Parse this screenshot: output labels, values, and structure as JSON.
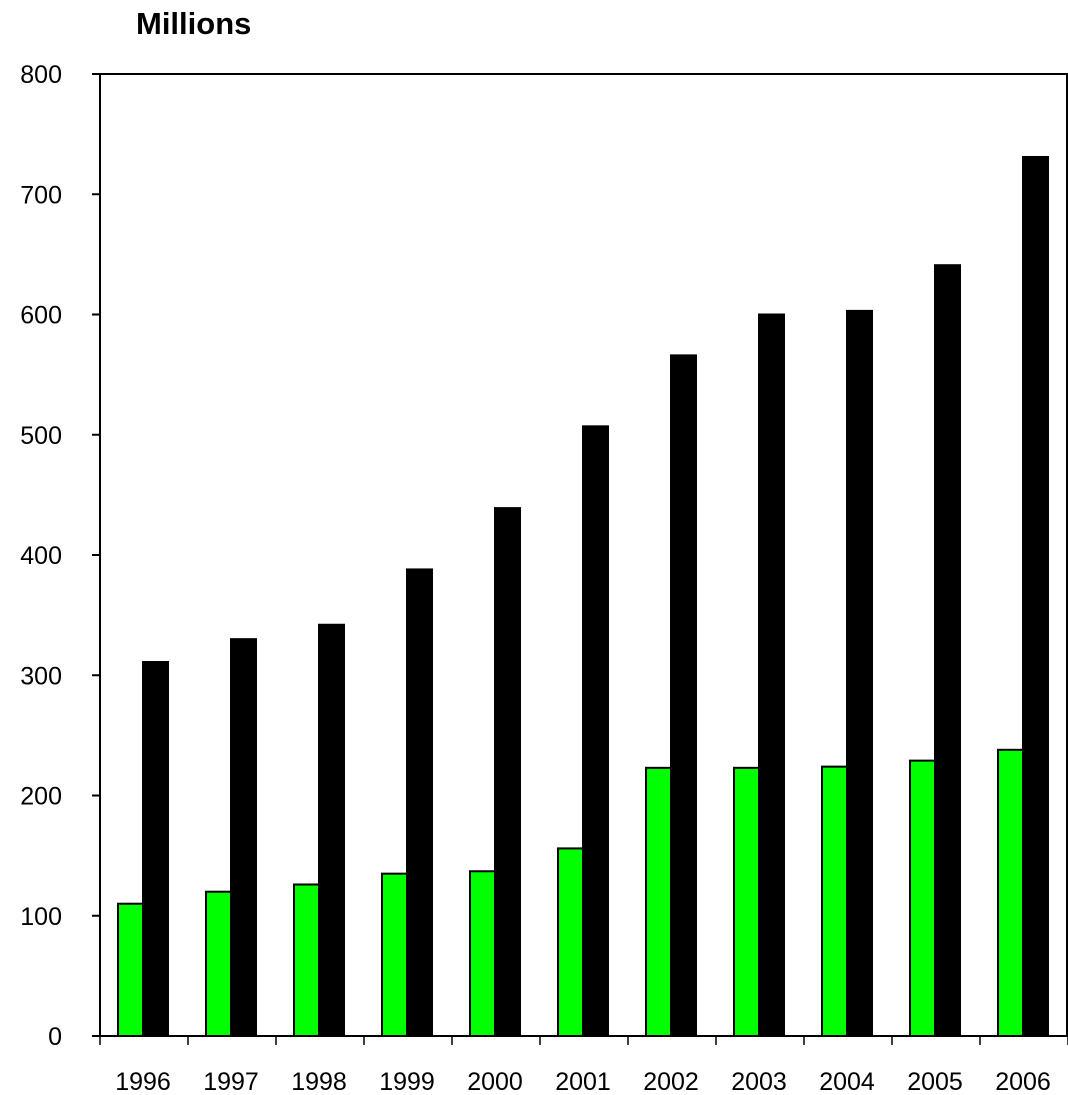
{
  "chart_data": {
    "type": "bar",
    "title": "",
    "ylabel": "Millions",
    "xlabel": "",
    "categories": [
      "1996",
      "1997",
      "1998",
      "1999",
      "2000",
      "2001",
      "2002",
      "2003",
      "2004",
      "2005",
      "2006"
    ],
    "series": [
      {
        "color": "#00ff00",
        "values": [
          110,
          120,
          126,
          135,
          137,
          156,
          223,
          223,
          224,
          229,
          238
        ]
      },
      {
        "color": "#000000",
        "values": [
          311,
          330,
          342,
          388,
          439,
          507,
          566,
          600,
          603,
          641,
          731
        ]
      }
    ],
    "ylim": [
      0,
      800
    ],
    "yticks": [
      "0",
      "100",
      "200",
      "300",
      "400",
      "500",
      "600",
      "700",
      "800"
    ],
    "grid": false,
    "legend": "none"
  }
}
